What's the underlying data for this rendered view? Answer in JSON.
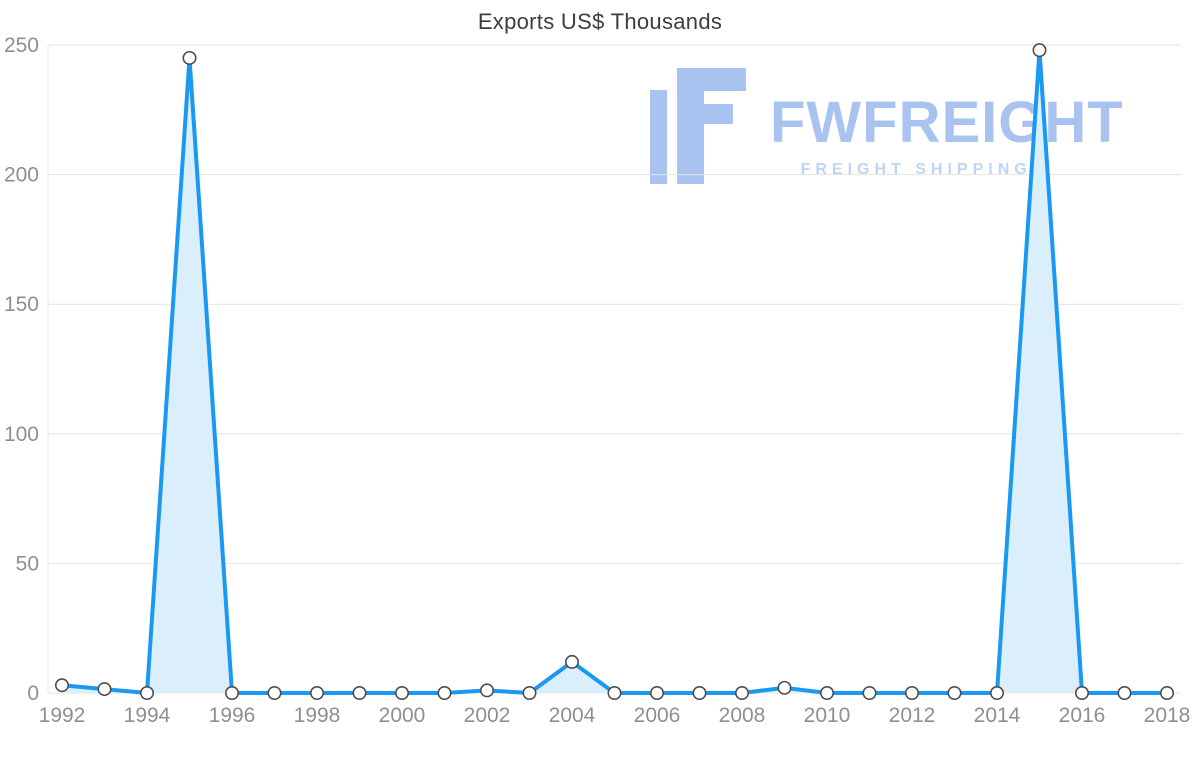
{
  "chart_data": {
    "type": "area",
    "title": "Exports US$ Thousands",
    "x": [
      1992,
      1993,
      1994,
      1995,
      1996,
      1997,
      1998,
      1999,
      2000,
      2001,
      2002,
      2003,
      2004,
      2005,
      2006,
      2007,
      2008,
      2009,
      2010,
      2011,
      2012,
      2013,
      2014,
      2015,
      2016,
      2017,
      2018
    ],
    "values": [
      3,
      1.5,
      0,
      245,
      0,
      0,
      0,
      0,
      0,
      0,
      1,
      0,
      12,
      0,
      0,
      0,
      0,
      2,
      0,
      0,
      0,
      0,
      0,
      248,
      0,
      0,
      0
    ],
    "xticks": [
      1992,
      1994,
      1996,
      1998,
      2000,
      2002,
      2004,
      2006,
      2008,
      2010,
      2012,
      2014,
      2016,
      2018
    ],
    "yticks": [
      0,
      50,
      100,
      150,
      200,
      250
    ],
    "ylim": [
      0,
      250
    ],
    "xlabel": "",
    "ylabel": "",
    "grid": true,
    "legend": "none",
    "line_color": "#1b99f1",
    "fill_color": "#dbeefc",
    "marker_fill": "#ffffff",
    "marker_border": "#4d4d4d",
    "grid_color": "#e4e4e4",
    "axis_text_color": "#8f8f8f",
    "title_color": "#3d3d3d"
  },
  "watermark": {
    "title": "FWFREIGHT",
    "subtitle": "FREIGHT SHIPPING",
    "color": "#a9c3f1",
    "subtitle_color": "#bdd6f8"
  }
}
